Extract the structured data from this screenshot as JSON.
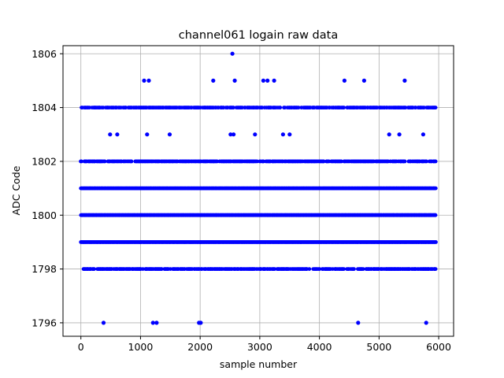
{
  "chart_data": {
    "type": "scatter",
    "title": "channel061 logain raw data",
    "xlabel": "sample number",
    "ylabel": "ADC Code",
    "xlim": [
      -300,
      6250
    ],
    "ylim": [
      1795.5,
      1806.3
    ],
    "xticks": [
      0,
      1000,
      2000,
      3000,
      4000,
      5000,
      6000
    ],
    "yticks": [
      1796,
      1798,
      1800,
      1802,
      1804,
      1806
    ],
    "xtick_labels": [
      "0",
      "1000",
      "2000",
      "3000",
      "4000",
      "5000",
      "6000"
    ],
    "ytick_labels": [
      "1796",
      "1798",
      "1800",
      "1802",
      "1804",
      "1806"
    ],
    "grid": true,
    "marker_color": "#0000ff",
    "sample_range": [
      0,
      5950
    ],
    "levels": [
      {
        "value": 1799,
        "pattern": "dense"
      },
      {
        "value": 1800,
        "pattern": "dense"
      },
      {
        "value": 1801,
        "pattern": "dense"
      },
      {
        "value": 1802,
        "pattern": "medium"
      },
      {
        "value": 1804,
        "pattern": "medium"
      },
      {
        "value": 1798,
        "pattern": "medium"
      }
    ],
    "outliers": [
      {
        "x": 2540,
        "y": 1806
      },
      {
        "x": 1060,
        "y": 1805
      },
      {
        "x": 1140,
        "y": 1805
      },
      {
        "x": 2220,
        "y": 1805
      },
      {
        "x": 2580,
        "y": 1805
      },
      {
        "x": 3060,
        "y": 1805
      },
      {
        "x": 3130,
        "y": 1805
      },
      {
        "x": 3240,
        "y": 1805
      },
      {
        "x": 4420,
        "y": 1805
      },
      {
        "x": 4750,
        "y": 1805
      },
      {
        "x": 5430,
        "y": 1805
      },
      {
        "x": 490,
        "y": 1803
      },
      {
        "x": 610,
        "y": 1803
      },
      {
        "x": 1110,
        "y": 1803
      },
      {
        "x": 1490,
        "y": 1803
      },
      {
        "x": 2510,
        "y": 1803
      },
      {
        "x": 2560,
        "y": 1803
      },
      {
        "x": 2920,
        "y": 1803
      },
      {
        "x": 3390,
        "y": 1803
      },
      {
        "x": 3500,
        "y": 1803
      },
      {
        "x": 5170,
        "y": 1803
      },
      {
        "x": 5340,
        "y": 1803
      },
      {
        "x": 5740,
        "y": 1803
      },
      {
        "x": 380,
        "y": 1796
      },
      {
        "x": 1210,
        "y": 1796
      },
      {
        "x": 1270,
        "y": 1796
      },
      {
        "x": 1980,
        "y": 1796
      },
      {
        "x": 2010,
        "y": 1796
      },
      {
        "x": 4650,
        "y": 1796
      },
      {
        "x": 5790,
        "y": 1796
      }
    ]
  }
}
